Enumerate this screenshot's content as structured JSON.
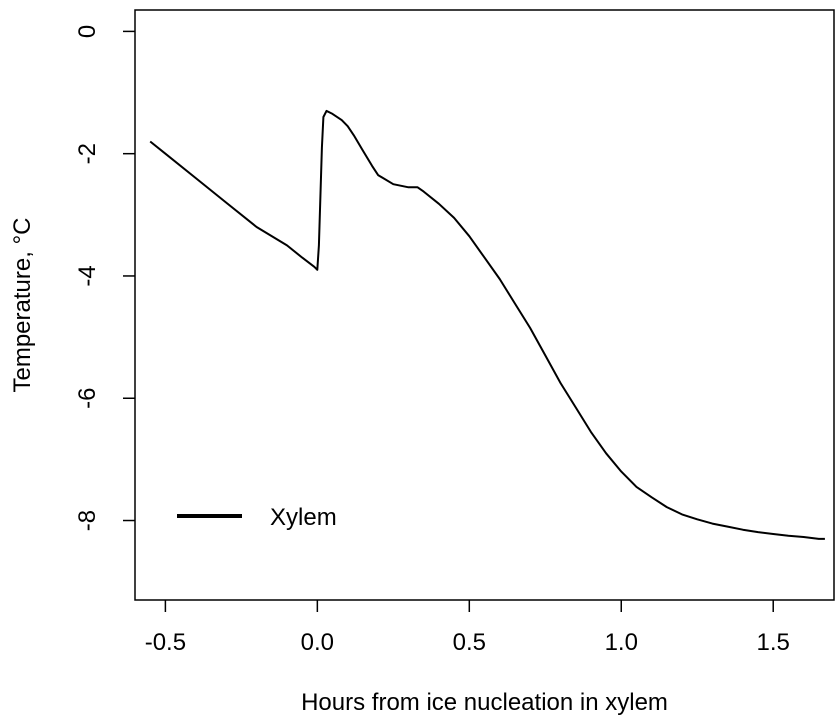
{
  "chart_data": {
    "type": "line",
    "title": "",
    "xlabel": "Hours from ice nucleation in xylem",
    "ylabel": "Temperature, °C",
    "xlim": [
      -0.6,
      1.7
    ],
    "ylim": [
      -9.3,
      0.35
    ],
    "x_ticks": [
      -0.5,
      0.0,
      0.5,
      1.0,
      1.5
    ],
    "x_tick_labels": [
      "-0.5",
      "0.0",
      "0.5",
      "1.0",
      "1.5"
    ],
    "y_ticks": [
      0,
      -2,
      -4,
      -6,
      -8
    ],
    "y_tick_labels": [
      "0",
      "-2",
      "-4",
      "-6",
      "-8"
    ],
    "grid": false,
    "legend_position": "bottom-left",
    "series": [
      {
        "name": "Xylem",
        "color": "#000000",
        "x": [
          -0.55,
          -0.5,
          -0.4,
          -0.3,
          -0.2,
          -0.1,
          -0.05,
          -0.01,
          0.0,
          0.005,
          0.01,
          0.015,
          0.02,
          0.03,
          0.05,
          0.08,
          0.1,
          0.12,
          0.15,
          0.18,
          0.2,
          0.25,
          0.3,
          0.33,
          0.35,
          0.4,
          0.45,
          0.5,
          0.55,
          0.6,
          0.65,
          0.7,
          0.75,
          0.8,
          0.85,
          0.9,
          0.95,
          1.0,
          1.05,
          1.1,
          1.15,
          1.2,
          1.25,
          1.3,
          1.35,
          1.4,
          1.45,
          1.5,
          1.55,
          1.6,
          1.65,
          1.67
        ],
        "y": [
          -1.8,
          -2.0,
          -2.4,
          -2.8,
          -3.2,
          -3.5,
          -3.7,
          -3.85,
          -3.9,
          -3.5,
          -2.7,
          -1.9,
          -1.4,
          -1.3,
          -1.35,
          -1.45,
          -1.55,
          -1.7,
          -1.95,
          -2.2,
          -2.35,
          -2.5,
          -2.55,
          -2.55,
          -2.62,
          -2.82,
          -3.05,
          -3.35,
          -3.7,
          -4.05,
          -4.45,
          -4.85,
          -5.3,
          -5.75,
          -6.15,
          -6.55,
          -6.9,
          -7.2,
          -7.45,
          -7.62,
          -7.78,
          -7.9,
          -7.98,
          -8.05,
          -8.1,
          -8.15,
          -8.19,
          -8.22,
          -8.25,
          -8.27,
          -8.3,
          -8.3
        ]
      }
    ]
  }
}
